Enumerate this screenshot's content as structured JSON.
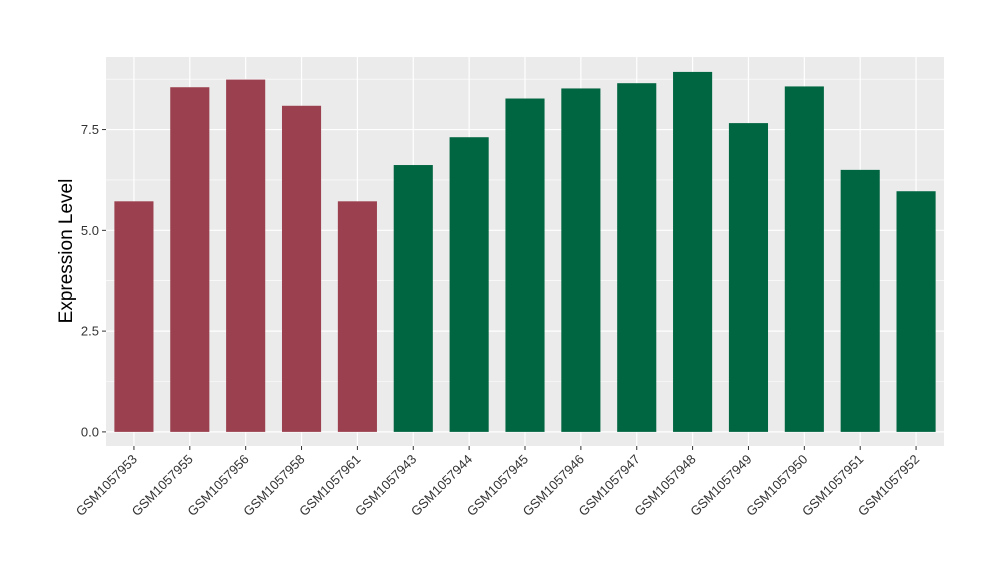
{
  "chart_data": {
    "type": "bar",
    "title": "",
    "xlabel": "",
    "ylabel": "Expression Level",
    "ylim": [
      -0.35,
      9.3
    ],
    "yticks": [
      0.0,
      2.5,
      5.0,
      7.5
    ],
    "ytick_labels": [
      "0.0",
      "2.5",
      "5.0",
      "7.5"
    ],
    "grid": true,
    "legend": "none",
    "categories": [
      "GSM1057953",
      "GSM1057955",
      "GSM1057956",
      "GSM1057958",
      "GSM1057961",
      "GSM1057943",
      "GSM1057944",
      "GSM1057945",
      "GSM1057946",
      "GSM1057947",
      "GSM1057948",
      "GSM1057949",
      "GSM1057950",
      "GSM1057951",
      "GSM1057952"
    ],
    "values": [
      5.72,
      8.55,
      8.74,
      8.09,
      5.72,
      6.62,
      7.31,
      8.27,
      8.52,
      8.65,
      8.93,
      7.66,
      8.57,
      6.5,
      5.97
    ],
    "groups": [
      "g1",
      "g1",
      "g1",
      "g1",
      "g1",
      "g2",
      "g2",
      "g2",
      "g2",
      "g2",
      "g2",
      "g2",
      "g2",
      "g2",
      "g2"
    ],
    "colors": {
      "g1": "#9b404e",
      "g2": "#006641"
    },
    "panel_color": "#ebebeb",
    "grid_color": "#ffffff"
  }
}
